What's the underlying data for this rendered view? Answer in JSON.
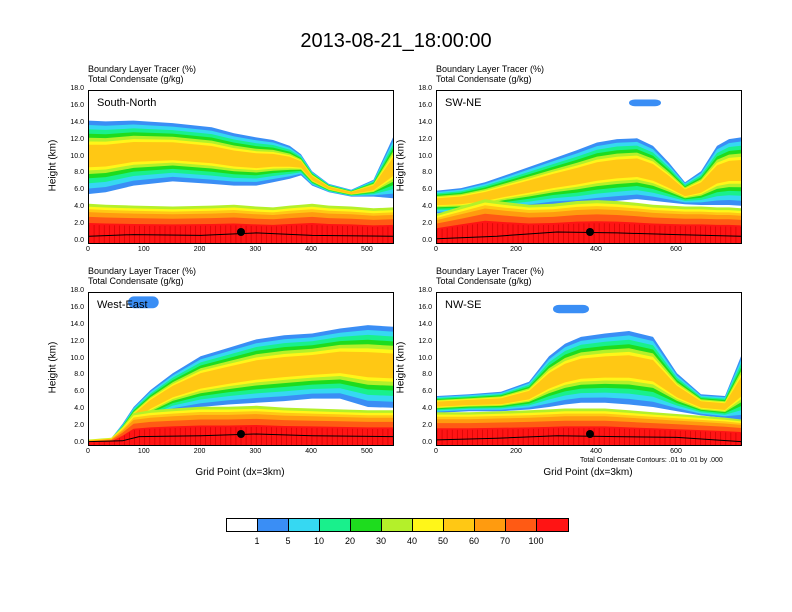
{
  "title": "2013-08-21_18:00:00",
  "chart_data": {
    "type": "heatmap",
    "header": {
      "line1": "Boundary Layer Tracer   (%)",
      "line2": "Total Condensate   (g/kg)"
    },
    "ylabel": "Height (km)",
    "ylim": [
      0,
      18
    ],
    "yticks": [
      "0.0",
      "2.0",
      "4.0",
      "6.0",
      "8.0",
      "10.0",
      "12.0",
      "14.0",
      "16.0",
      "18.0"
    ],
    "xlabel": "Grid Point (dx=3km)",
    "contour_note": "Total Condensate Contours: .01 to .01 by .000",
    "panels": [
      {
        "name": "South-North",
        "xlim": [
          0,
          545
        ],
        "xticks": [
          "0",
          "100",
          "200",
          "300",
          "400",
          "500"
        ],
        "marker_x": 275,
        "surface": [
          [
            0,
            0.8
          ],
          [
            80,
            1.0
          ],
          [
            200,
            0.9
          ],
          [
            300,
            1.2
          ],
          [
            400,
            0.9
          ],
          [
            545,
            0.8
          ]
        ],
        "plumes": [
          {
            "x": [
              0,
              30,
              80,
              150,
              220,
              260,
              300,
              330,
              360,
              380,
              400,
              430,
              470,
              510,
              545
            ],
            "top": [
              14.5,
              14.4,
              14.5,
              14.2,
              13.7,
              13.0,
              12.5,
              12.2,
              11.5,
              10.5,
              8.5,
              7.0,
              6.3,
              7.5,
              12.5
            ],
            "bot": [
              5.8,
              6.0,
              6.8,
              7.3,
              7.0,
              6.8,
              6.8,
              7.2,
              7.6,
              8.0,
              6.8,
              6.0,
              5.5,
              5.5,
              5.3
            ]
          }
        ],
        "pbl": [
          4.3,
          4.2,
          4.1,
          4.0,
          4.1,
          4.2,
          4.0,
          3.9,
          4.1,
          4.2,
          4.3,
          4.1,
          4.0,
          3.8,
          3.9
        ],
        "clouds": []
      },
      {
        "name": "SW-NE",
        "xlim": [
          0,
          760
        ],
        "xticks": [
          "0",
          "200",
          "400",
          "600"
        ],
        "marker_x": 385,
        "surface": [
          [
            0,
            0.5
          ],
          [
            150,
            0.8
          ],
          [
            300,
            1.3
          ],
          [
            450,
            1.2
          ],
          [
            600,
            1.0
          ],
          [
            760,
            0.8
          ]
        ],
        "plumes": [
          {
            "x": [
              0,
              60,
              120,
              170,
              230,
              290,
              350,
              400,
              450,
              500,
              540,
              580,
              620,
              660,
              700,
              730,
              760
            ],
            "top": [
              6.2,
              6.5,
              7.2,
              8.0,
              9.0,
              10.0,
              11.0,
              11.9,
              12.3,
              12.4,
              11.5,
              9.5,
              7.2,
              8.5,
              11.5,
              12.3,
              12.5
            ],
            "bot": [
              3.5,
              3.5,
              3.7,
              4.0,
              4.2,
              4.5,
              4.6,
              4.8,
              5.0,
              5.2,
              5.0,
              4.8,
              4.6,
              4.5,
              4.5,
              4.5,
              4.4
            ]
          }
        ],
        "pbl": [
          3.2,
          4.0,
          4.8,
          4.5,
          4.2,
          4.3,
          4.6,
          4.7,
          4.6,
          4.4,
          4.2,
          4.1,
          4.0,
          4.0,
          3.9,
          3.9,
          3.8
        ],
        "clouds": [
          {
            "x1": 480,
            "x2": 560,
            "y1": 16.2,
            "y2": 17.0
          }
        ]
      },
      {
        "name": "West-East",
        "xlim": [
          0,
          545
        ],
        "xticks": [
          "0",
          "100",
          "200",
          "300",
          "400",
          "500"
        ],
        "marker_x": 275,
        "surface": [
          [
            0,
            0.4
          ],
          [
            60,
            0.5
          ],
          [
            90,
            1.0
          ],
          [
            200,
            1.1
          ],
          [
            300,
            1.3
          ],
          [
            400,
            1.1
          ],
          [
            545,
            1.0
          ]
        ],
        "plumes": [
          {
            "x": [
              0,
              40,
              60,
              80,
              110,
              150,
              200,
              250,
              300,
              350,
              400,
              450,
              500,
              545
            ],
            "top": [
              0.6,
              0.8,
              2.5,
              4.5,
              6.5,
              8.5,
              10.5,
              11.5,
              12.5,
              13.0,
              13.2,
              13.8,
              14.2,
              14.0
            ],
            "bot": [
              0.3,
              0.4,
              0.8,
              2.0,
              3.0,
              4.0,
              4.5,
              4.8,
              5.0,
              5.2,
              5.5,
              5.5,
              4.5,
              4.4
            ]
          }
        ],
        "pbl": [
          0.6,
          0.8,
          2.0,
          3.5,
          3.8,
          4.0,
          4.2,
          4.2,
          4.3,
          4.1,
          4.0,
          3.9,
          3.8,
          3.8
        ],
        "clouds": [
          {
            "x1": 70,
            "x2": 125,
            "y1": 16.2,
            "y2": 17.6
          }
        ]
      },
      {
        "name": "NW-SE",
        "xlim": [
          0,
          760
        ],
        "xticks": [
          "0",
          "200",
          "400",
          "600"
        ],
        "marker_x": 385,
        "surface": [
          [
            0,
            0.6
          ],
          [
            150,
            0.8
          ],
          [
            300,
            1.1
          ],
          [
            450,
            1.0
          ],
          [
            600,
            0.9
          ],
          [
            760,
            0.4
          ]
        ],
        "plumes": [
          {
            "x": [
              0,
              80,
              160,
              230,
              280,
              320,
              360,
              420,
              480,
              540,
              600,
              660,
              720,
              760
            ],
            "top": [
              5.8,
              6.0,
              6.3,
              7.5,
              10.5,
              12.0,
              12.8,
              13.2,
              13.5,
              12.8,
              8.5,
              6.0,
              5.8,
              10.5
            ],
            "bot": [
              3.8,
              4.0,
              4.0,
              4.2,
              4.5,
              4.8,
              5.0,
              5.0,
              4.8,
              4.5,
              4.0,
              3.5,
              3.2,
              3.0
            ]
          }
        ],
        "pbl": [
          3.6,
          3.6,
          3.7,
          3.8,
          3.9,
          4.0,
          4.0,
          4.0,
          3.8,
          3.6,
          3.4,
          3.2,
          3.0,
          2.8
        ],
        "clouds": [
          {
            "x1": 290,
            "x2": 380,
            "y1": 15.6,
            "y2": 16.6
          }
        ]
      }
    ],
    "colorbar": {
      "colors": [
        "#ffffff",
        "#3a8ef5",
        "#36d8f2",
        "#19f08c",
        "#1edc1e",
        "#b4f02a",
        "#fff619",
        "#ffc814",
        "#ff9b0f",
        "#ff5a14",
        "#ff1414"
      ],
      "labels": [
        "1",
        "5",
        "10",
        "20",
        "30",
        "40",
        "50",
        "60",
        "70",
        "100"
      ]
    }
  }
}
